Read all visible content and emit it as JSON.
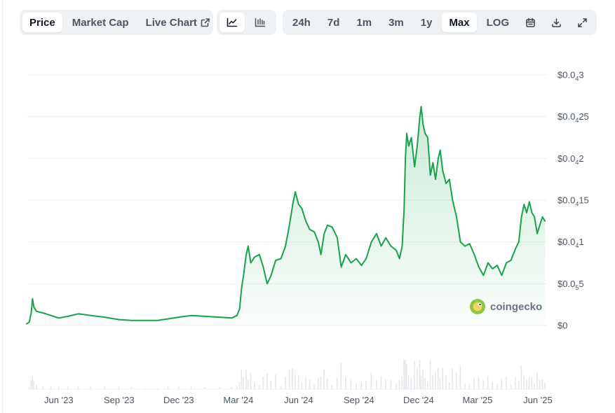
{
  "toolbar": {
    "view_tabs": [
      "Price",
      "Market Cap",
      "Live Chart"
    ],
    "active_view": "Price",
    "chart_type_icons": [
      "line-chart-icon",
      "candlestick-icon"
    ],
    "active_chart_type": "line-chart-icon",
    "ranges": [
      "24h",
      "7d",
      "1m",
      "3m",
      "1y",
      "Max",
      "LOG"
    ],
    "active_range": "Max",
    "tool_icons": [
      "calendar-icon",
      "download-icon",
      "expand-icon"
    ]
  },
  "watermark": "coingecko",
  "colors": {
    "line": "#16a34a",
    "area_top": "#16a34a",
    "grid": "#eceff3",
    "volume": "#e5e7eb",
    "toolbar_bg": "#eff2f5"
  },
  "chart_data": {
    "type": "area",
    "xlabel": "",
    "ylabel": "",
    "grid": true,
    "legend": "none",
    "y_ticks": [
      {
        "v": 0,
        "base": "$0",
        "sub": "",
        "tail": ""
      },
      {
        "v": 5e-06,
        "base": "$0.0",
        "sub": "5",
        "tail": "5"
      },
      {
        "v": 1e-05,
        "base": "$0.0",
        "sub": "4",
        "tail": "1"
      },
      {
        "v": 1.5e-05,
        "base": "$0.0",
        "sub": "4",
        "tail": "15"
      },
      {
        "v": 2e-05,
        "base": "$0.0",
        "sub": "4",
        "tail": "2"
      },
      {
        "v": 2.5e-05,
        "base": "$0.0",
        "sub": "4",
        "tail": "25"
      },
      {
        "v": 3e-05,
        "base": "$0.0",
        "sub": "4",
        "tail": "3"
      }
    ],
    "ylim": [
      0,
      3e-05
    ],
    "xlim": [
      "2023-04-13",
      "2025-06-15"
    ],
    "x_ticks": [
      {
        "label": "Jun '23",
        "date": "2023-06-01"
      },
      {
        "label": "Sep '23",
        "date": "2023-09-01"
      },
      {
        "label": "Dec '23",
        "date": "2023-12-01"
      },
      {
        "label": "Mar '24",
        "date": "2024-03-01"
      },
      {
        "label": "Jun '24",
        "date": "2024-06-01"
      },
      {
        "label": "Sep '24",
        "date": "2024-09-01"
      },
      {
        "label": "Dec '24",
        "date": "2024-12-01"
      },
      {
        "label": "Mar '25",
        "date": "2025-03-01"
      },
      {
        "label": "Jun '25",
        "date": "2025-06-01"
      }
    ],
    "series": [
      {
        "points": [
          [
            "2023-04-13",
            2e-07
          ],
          [
            "2023-04-17",
            4e-07
          ],
          [
            "2023-04-20",
            1.5e-06
          ],
          [
            "2023-04-22",
            3.2e-06
          ],
          [
            "2023-04-24",
            2.2e-06
          ],
          [
            "2023-04-28",
            1.7e-06
          ],
          [
            "2023-05-08",
            1.5e-06
          ],
          [
            "2023-05-20",
            1.2e-06
          ],
          [
            "2023-06-01",
            9e-07
          ],
          [
            "2023-06-15",
            1.1e-06
          ],
          [
            "2023-07-01",
            1.4e-06
          ],
          [
            "2023-07-20",
            1.2e-06
          ],
          [
            "2023-08-10",
            1e-06
          ],
          [
            "2023-09-01",
            7e-07
          ],
          [
            "2023-09-20",
            6e-07
          ],
          [
            "2023-10-10",
            6e-07
          ],
          [
            "2023-10-30",
            6e-07
          ],
          [
            "2023-11-15",
            8e-07
          ],
          [
            "2023-12-01",
            1e-06
          ],
          [
            "2023-12-20",
            1.2e-06
          ],
          [
            "2024-01-10",
            1.1e-06
          ],
          [
            "2024-02-01",
            1e-06
          ],
          [
            "2024-02-20",
            9e-07
          ],
          [
            "2024-02-28",
            1.2e-06
          ],
          [
            "2024-03-03",
            2e-06
          ],
          [
            "2024-03-06",
            4.5e-06
          ],
          [
            "2024-03-09",
            6e-06
          ],
          [
            "2024-03-13",
            8.5e-06
          ],
          [
            "2024-03-16",
            9.5e-06
          ],
          [
            "2024-03-20",
            7.5e-06
          ],
          [
            "2024-03-26",
            8.2e-06
          ],
          [
            "2024-04-02",
            8.5e-06
          ],
          [
            "2024-04-08",
            7e-06
          ],
          [
            "2024-04-14",
            5e-06
          ],
          [
            "2024-04-20",
            6e-06
          ],
          [
            "2024-04-27",
            7.8e-06
          ],
          [
            "2024-05-05",
            8e-06
          ],
          [
            "2024-05-12",
            9.5e-06
          ],
          [
            "2024-05-18",
            1.2e-05
          ],
          [
            "2024-05-23",
            1.45e-05
          ],
          [
            "2024-05-27",
            1.6e-05
          ],
          [
            "2024-06-01",
            1.45e-05
          ],
          [
            "2024-06-06",
            1.4e-05
          ],
          [
            "2024-06-12",
            1.25e-05
          ],
          [
            "2024-06-18",
            1.15e-05
          ],
          [
            "2024-06-25",
            1.12e-05
          ],
          [
            "2024-07-01",
            1e-05
          ],
          [
            "2024-07-05",
            8.5e-06
          ],
          [
            "2024-07-10",
            1.1e-05
          ],
          [
            "2024-07-15",
            1.2e-05
          ],
          [
            "2024-07-22",
            1.18e-05
          ],
          [
            "2024-07-30",
            1.05e-05
          ],
          [
            "2024-08-05",
            7e-06
          ],
          [
            "2024-08-12",
            8.5e-06
          ],
          [
            "2024-08-20",
            7.5e-06
          ],
          [
            "2024-08-28",
            8e-06
          ],
          [
            "2024-09-05",
            7.2e-06
          ],
          [
            "2024-09-12",
            8e-06
          ],
          [
            "2024-09-20",
            1e-05
          ],
          [
            "2024-09-28",
            1.1e-05
          ],
          [
            "2024-10-05",
            9.5e-06
          ],
          [
            "2024-10-12",
            1.05e-05
          ],
          [
            "2024-10-20",
            9.5e-06
          ],
          [
            "2024-10-28",
            9e-06
          ],
          [
            "2024-11-02",
            8e-06
          ],
          [
            "2024-11-06",
            9.5e-06
          ],
          [
            "2024-11-09",
            1.4e-05
          ],
          [
            "2024-11-11",
            2e-05
          ],
          [
            "2024-11-13",
            2.3e-05
          ],
          [
            "2024-11-16",
            2.15e-05
          ],
          [
            "2024-11-20",
            2.25e-05
          ],
          [
            "2024-11-25",
            1.9e-05
          ],
          [
            "2024-11-29",
            2.15e-05
          ],
          [
            "2024-12-03",
            2.5e-05
          ],
          [
            "2024-12-05",
            2.62e-05
          ],
          [
            "2024-12-08",
            2.4e-05
          ],
          [
            "2024-12-11",
            2.3e-05
          ],
          [
            "2024-12-15",
            2.25e-05
          ],
          [
            "2024-12-19",
            1.8e-05
          ],
          [
            "2024-12-23",
            1.95e-05
          ],
          [
            "2024-12-27",
            1.75e-05
          ],
          [
            "2024-12-31",
            2e-05
          ],
          [
            "2025-01-03",
            2.1e-05
          ],
          [
            "2025-01-07",
            1.85e-05
          ],
          [
            "2025-01-12",
            1.7e-05
          ],
          [
            "2025-01-17",
            1.75e-05
          ],
          [
            "2025-01-22",
            1.5e-05
          ],
          [
            "2025-01-28",
            1.3e-05
          ],
          [
            "2025-02-03",
            1e-05
          ],
          [
            "2025-02-10",
            9.5e-06
          ],
          [
            "2025-02-17",
            9.8e-06
          ],
          [
            "2025-02-24",
            8.5e-06
          ],
          [
            "2025-03-03",
            7e-06
          ],
          [
            "2025-03-10",
            6e-06
          ],
          [
            "2025-03-17",
            7.5e-06
          ],
          [
            "2025-03-24",
            6.8e-06
          ],
          [
            "2025-03-31",
            7.2e-06
          ],
          [
            "2025-04-07",
            6e-06
          ],
          [
            "2025-04-14",
            7.5e-06
          ],
          [
            "2025-04-21",
            7.8e-06
          ],
          [
            "2025-04-28",
            9.2e-06
          ],
          [
            "2025-05-03",
            1e-05
          ],
          [
            "2025-05-07",
            1.3e-05
          ],
          [
            "2025-05-11",
            1.45e-05
          ],
          [
            "2025-05-15",
            1.35e-05
          ],
          [
            "2025-05-19",
            1.48e-05
          ],
          [
            "2025-05-23",
            1.35e-05
          ],
          [
            "2025-05-27",
            1.3e-05
          ],
          [
            "2025-05-31",
            1.1e-05
          ],
          [
            "2025-06-04",
            1.2e-05
          ],
          [
            "2025-06-08",
            1.3e-05
          ],
          [
            "2025-06-12",
            1.25e-05
          ]
        ]
      }
    ]
  }
}
